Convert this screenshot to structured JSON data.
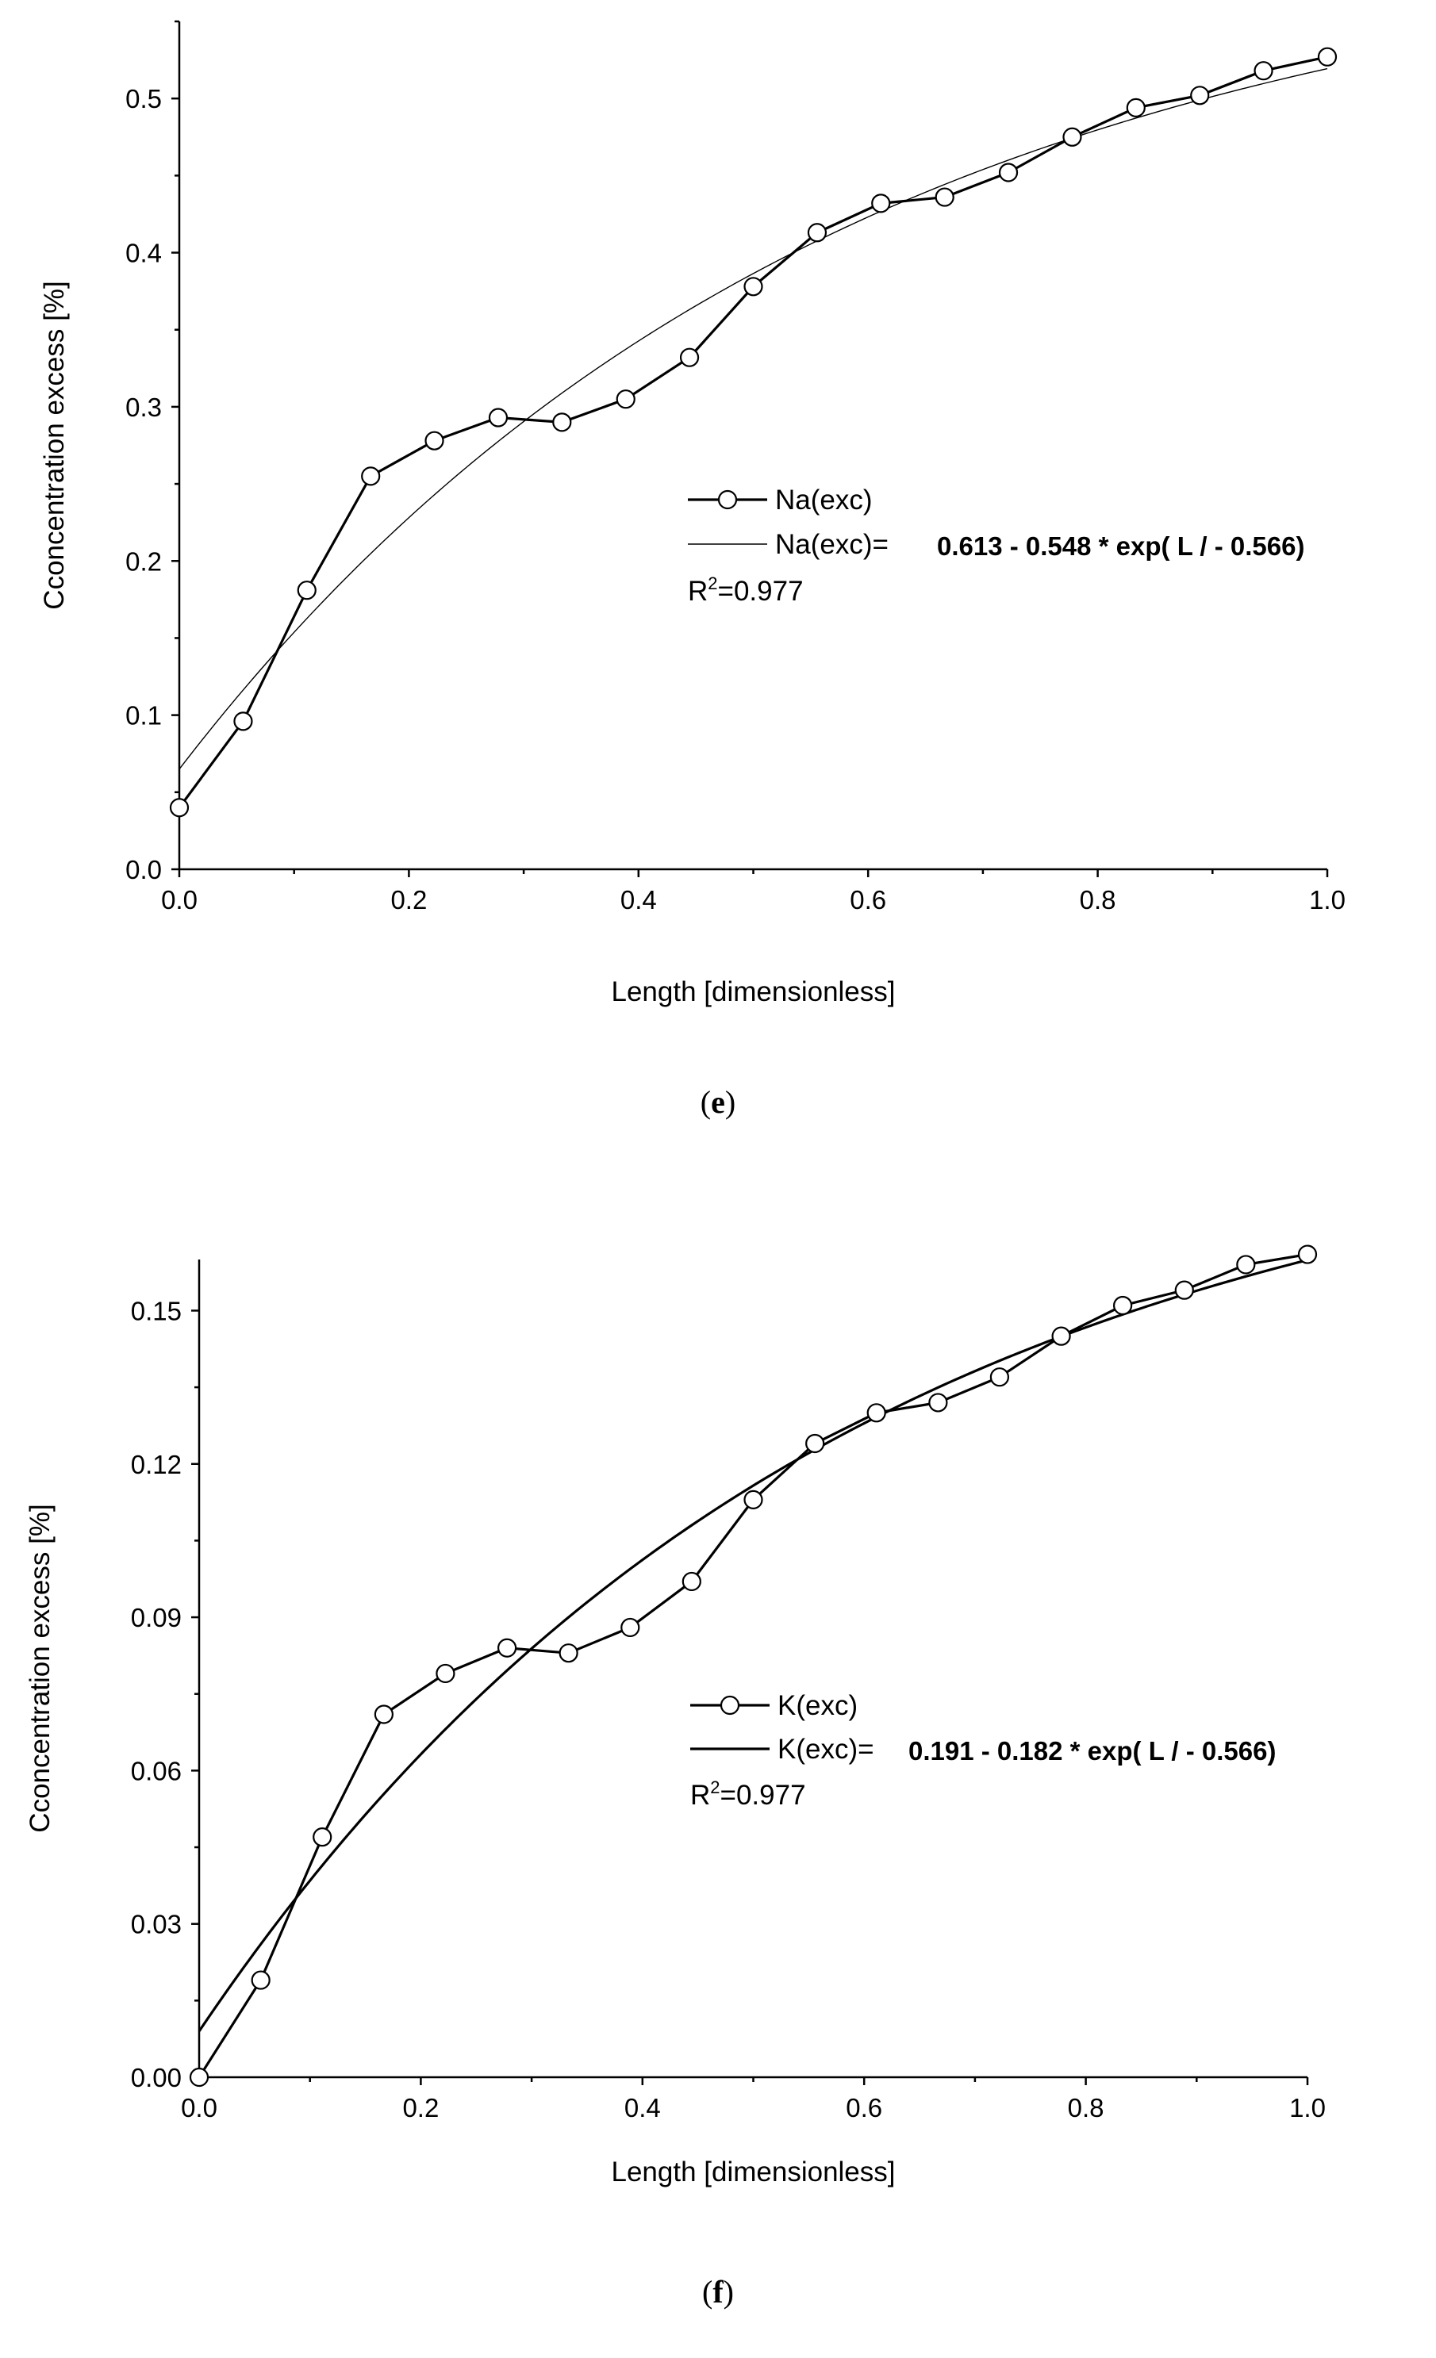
{
  "chart_data": [
    {
      "id": "e",
      "type": "line",
      "caption": "e",
      "xlabel": "Length [dimensionless]",
      "ylabel": "Cconcentration excess [%]",
      "xlim": [
        0,
        1.0
      ],
      "ylim": [
        0,
        0.55
      ],
      "xticks": [
        "0.0",
        "0.2",
        "0.4",
        "0.6",
        "0.8",
        "1.0"
      ],
      "yticks": [
        "0.0",
        "0.1",
        "0.2",
        "0.3",
        "0.4",
        "0.5"
      ],
      "x": [
        0.0,
        0.0556,
        0.1111,
        0.1667,
        0.2222,
        0.2778,
        0.3333,
        0.3889,
        0.4444,
        0.5,
        0.5556,
        0.6111,
        0.6667,
        0.7222,
        0.7778,
        0.8333,
        0.8889,
        0.9444,
        1.0
      ],
      "series": [
        {
          "name": "Na(exc)",
          "values": [
            0.04,
            0.096,
            0.181,
            0.255,
            0.278,
            0.293,
            0.29,
            0.305,
            0.332,
            0.378,
            0.413,
            0.432,
            0.436,
            0.452,
            0.475,
            0.494,
            0.502,
            0.518,
            0.527
          ]
        }
      ],
      "fit": {
        "a": 0.613,
        "b": 0.548,
        "c": 0.566,
        "stroke_width": 1.4
      },
      "legend": {
        "series_label": "Na(exc)",
        "fit_label": "Na(exc)=",
        "equation": "0.613 - 0.548 * exp( L / - 0.566)",
        "r2_prefix": "R",
        "r2_sup": "2",
        "r2_value": "=0.977"
      }
    },
    {
      "id": "f",
      "type": "line",
      "caption": "f",
      "xlabel": "Length [dimensionless]",
      "ylabel": "Cconcentration excess [%]",
      "xlim": [
        0,
        1.0
      ],
      "ylim": [
        0,
        0.16
      ],
      "xticks": [
        "0.0",
        "0.2",
        "0.4",
        "0.6",
        "0.8",
        "1.0"
      ],
      "yticks": [
        "0.00",
        "0.03",
        "0.06",
        "0.09",
        "0.12",
        "0.15"
      ],
      "x": [
        0.0,
        0.0556,
        0.1111,
        0.1667,
        0.2222,
        0.2778,
        0.3333,
        0.3889,
        0.4444,
        0.5,
        0.5556,
        0.6111,
        0.6667,
        0.7222,
        0.7778,
        0.8333,
        0.8889,
        0.9444,
        1.0
      ],
      "series": [
        {
          "name": "K(exc)",
          "values": [
            0.0,
            0.019,
            0.047,
            0.071,
            0.079,
            0.084,
            0.083,
            0.088,
            0.097,
            0.113,
            0.124,
            0.13,
            0.132,
            0.137,
            0.145,
            0.151,
            0.154,
            0.159,
            0.161
          ]
        }
      ],
      "fit": {
        "a": 0.191,
        "b": 0.182,
        "c": 0.566,
        "stroke_width": 3.2
      },
      "legend": {
        "series_label": "K(exc)",
        "fit_label": "K(exc)=",
        "equation": "0.191 - 0.182 * exp( L / - 0.566)",
        "r2_prefix": "R",
        "r2_sup": "2",
        "r2_value": "=0.977"
      }
    }
  ]
}
